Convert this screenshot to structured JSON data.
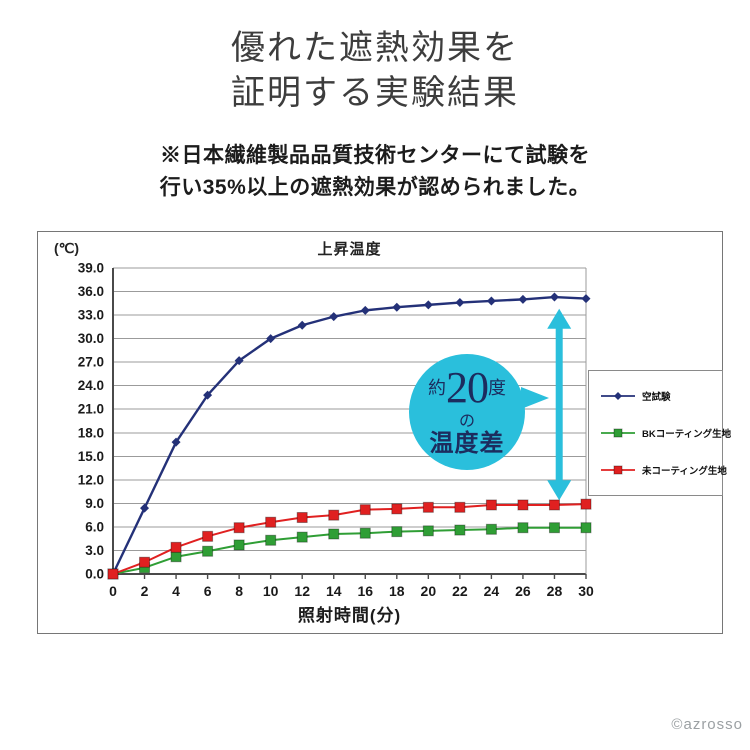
{
  "page": {
    "title": [
      "優れた遮熱効果を",
      "証明する実験結果"
    ],
    "note": [
      "※日本繊維製品品質技術センターにて試験を",
      "行い35%以上の遮熱効果が認められました。"
    ],
    "watermark": "©azrosso"
  },
  "chart_data": {
    "type": "line",
    "title": "上昇温度",
    "y_unit_label": "(℃)",
    "xlabel": "照射時間(分)",
    "x": [
      0,
      2,
      4,
      6,
      8,
      10,
      12,
      14,
      16,
      18,
      20,
      22,
      24,
      26,
      28,
      30
    ],
    "ylim": [
      0.0,
      39.0
    ],
    "ytick_step": 3.0,
    "grid": true,
    "legend_position": "right",
    "series": [
      {
        "name": "空試験",
        "color": "#243178",
        "marker": "diamond",
        "values": [
          0.0,
          8.4,
          16.8,
          22.8,
          27.2,
          30.0,
          31.7,
          32.8,
          33.6,
          34.0,
          34.3,
          34.6,
          34.8,
          35.0,
          35.3,
          35.1
        ]
      },
      {
        "name": "BKコーティング生地",
        "color": "#2f9e35",
        "marker": "square",
        "values": [
          0.0,
          0.8,
          2.2,
          2.9,
          3.7,
          4.3,
          4.7,
          5.1,
          5.2,
          5.4,
          5.5,
          5.6,
          5.7,
          5.9,
          5.9,
          5.9
        ]
      },
      {
        "name": "未コーティング生地",
        "color": "#e02020",
        "marker": "square",
        "values": [
          0.0,
          1.5,
          3.4,
          4.8,
          5.9,
          6.6,
          7.2,
          7.5,
          8.2,
          8.3,
          8.5,
          8.5,
          8.8,
          8.8,
          8.8,
          8.9
        ]
      }
    ],
    "annotation": {
      "bubble": {
        "prefix": "約",
        "number": "20",
        "suffix": "度",
        "middle": "の",
        "bottom": "温度差"
      },
      "accent_color": "#2abfdc",
      "text_color": "#1c2c5e",
      "arrow_x_minutes": 28.3,
      "arrow_top_value": 33.8,
      "arrow_bottom_value": 9.4
    }
  }
}
